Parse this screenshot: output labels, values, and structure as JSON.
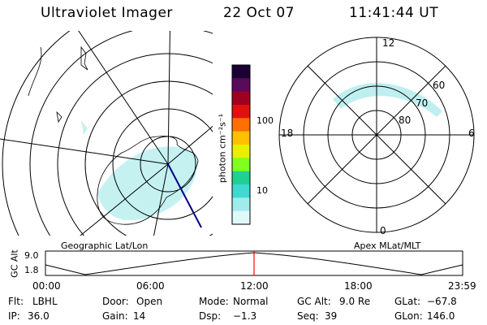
{
  "header": {
    "title": "Ultraviolet Imager",
    "date": "22 Oct 07",
    "time": "11:41:44 UT"
  },
  "colorbar": {
    "label": "photon cm⁻²s⁻¹",
    "ticks": [
      "100",
      "10"
    ],
    "colors": [
      "#1a0033",
      "#5a0a5a",
      "#a00020",
      "#e01010",
      "#ff7000",
      "#ffc000",
      "#e8f000",
      "#80ff20",
      "#20d090",
      "#40d8d0",
      "#a0ecec",
      "#e0f8f8"
    ]
  },
  "geographic_map": {
    "label": "Geographic Lat/Lon"
  },
  "polar_map": {
    "label": "Apex MLat/MLT",
    "mlt_labels": {
      "top": "12",
      "left": "18",
      "right": "6",
      "bottom": "0"
    },
    "lat_labels": [
      "60",
      "70",
      "80"
    ]
  },
  "altitude_plot": {
    "ylabel": "GC Alt",
    "yticks": [
      "9.0",
      "1.8"
    ],
    "xticks": [
      "00:00",
      "06:00",
      "12:00",
      "18:00",
      "23:59"
    ],
    "marker_color": "#ff0000"
  },
  "status": {
    "row1": [
      {
        "label": "Flt:",
        "value": "LBHL"
      },
      {
        "label": "Door:",
        "value": "Open"
      },
      {
        "label": "Mode:",
        "value": "Normal"
      },
      {
        "label": "GC Alt:",
        "value": "9.0 Re"
      },
      {
        "label": "GLat:",
        "value": "−67.8"
      }
    ],
    "row2": [
      {
        "label": "IP:",
        "value": "36.0"
      },
      {
        "label": "Gain:",
        "value": "14"
      },
      {
        "label": "Dsp:",
        "value": "−1.3"
      },
      {
        "label": "Seq:",
        "value": "39"
      },
      {
        "label": "GLon:",
        "value": "146.0"
      }
    ]
  }
}
